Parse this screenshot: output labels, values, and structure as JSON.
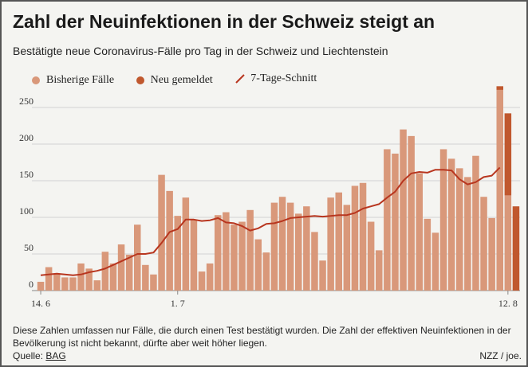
{
  "title": "Zahl der Neuinfektionen in der Schweiz steigt an",
  "subtitle": "Bestätigte neue Coronavirus-Fälle pro Tag in der Schweiz und Liechtenstein",
  "legend": {
    "previous": "Bisherige Fälle",
    "new": "Neu gemeldet",
    "avg": "7-Tage-Schnitt"
  },
  "colors": {
    "previous": "#d9987a",
    "new": "#c0582e",
    "avg_line": "#b8361f",
    "grid": "#d2d2d2",
    "background": "#f4f4f1"
  },
  "chart_data": {
    "type": "bar",
    "x_tick_labels": [
      "14. 6",
      "1. 7",
      "12. 8"
    ],
    "ylim": [
      0,
      275
    ],
    "yticks": [
      0,
      50,
      100,
      150,
      200,
      250
    ],
    "grid": true,
    "legend_position": "top-left",
    "series": [
      {
        "name": "Bisherige Fälle",
        "values": [
          12,
          32,
          23,
          18,
          18,
          37,
          30,
          14,
          53,
          37,
          63,
          49,
          90,
          35,
          22,
          158,
          136,
          102,
          127,
          97,
          26,
          37,
          103,
          107,
          90,
          94,
          110,
          70,
          52,
          120,
          128,
          120,
          105,
          115,
          80,
          41,
          127,
          134,
          117,
          143,
          147,
          94,
          55,
          193,
          187,
          220,
          211,
          160,
          98,
          79,
          193,
          180,
          167,
          155,
          184,
          128,
          99,
          274,
          130,
          0
        ],
        "labels": [
          "14. 6",
          "",
          "",
          "",
          "",
          "",
          "",
          "",
          "",
          "",
          "",
          "",
          "",
          "",
          "",
          "",
          "",
          "1. 7",
          "",
          "",
          "",
          "",
          "",
          "",
          "",
          "",
          "",
          "",
          "",
          "",
          "",
          "",
          "",
          "",
          "",
          "",
          "",
          "",
          "",
          "",
          "",
          "",
          "",
          "",
          "",
          "",
          "",
          "",
          "",
          "",
          "",
          "",
          "",
          "",
          "",
          "",
          "",
          "",
          "12. 8",
          ""
        ]
      },
      {
        "name": "Neu gemeldet",
        "values": [
          0,
          0,
          0,
          0,
          0,
          0,
          0,
          0,
          0,
          0,
          0,
          0,
          0,
          0,
          0,
          0,
          0,
          0,
          0,
          0,
          0,
          0,
          0,
          0,
          0,
          0,
          0,
          0,
          0,
          0,
          0,
          0,
          0,
          0,
          0,
          0,
          0,
          0,
          0,
          0,
          0,
          0,
          0,
          0,
          0,
          0,
          0,
          0,
          0,
          0,
          0,
          0,
          0,
          0,
          0,
          0,
          0,
          5,
          112,
          115
        ]
      },
      {
        "name": "7-Tage-Schnitt",
        "type": "line",
        "values": [
          21,
          22,
          23,
          22,
          21,
          22,
          25,
          27,
          30,
          35,
          40,
          45,
          50,
          50,
          52,
          65,
          80,
          84,
          97,
          97,
          95,
          96,
          99,
          93,
          92,
          88,
          82,
          85,
          91,
          92,
          95,
          99,
          100,
          101,
          102,
          101,
          102,
          103,
          103,
          106,
          112,
          115,
          118,
          127,
          135,
          150,
          160,
          162,
          161,
          165,
          165,
          164,
          152,
          145,
          148,
          155,
          157,
          168
        ]
      }
    ]
  },
  "footnote": "Diese Zahlen umfassen nur Fälle, die durch einen Test bestätigt wurden. Die Zahl der effektiven Neuinfektionen in der Bevölkerung ist nicht bekannt, dürfte aber weit höher liegen.",
  "source_label": "Quelle:",
  "source_link": "BAG",
  "credit": "NZZ / joe."
}
